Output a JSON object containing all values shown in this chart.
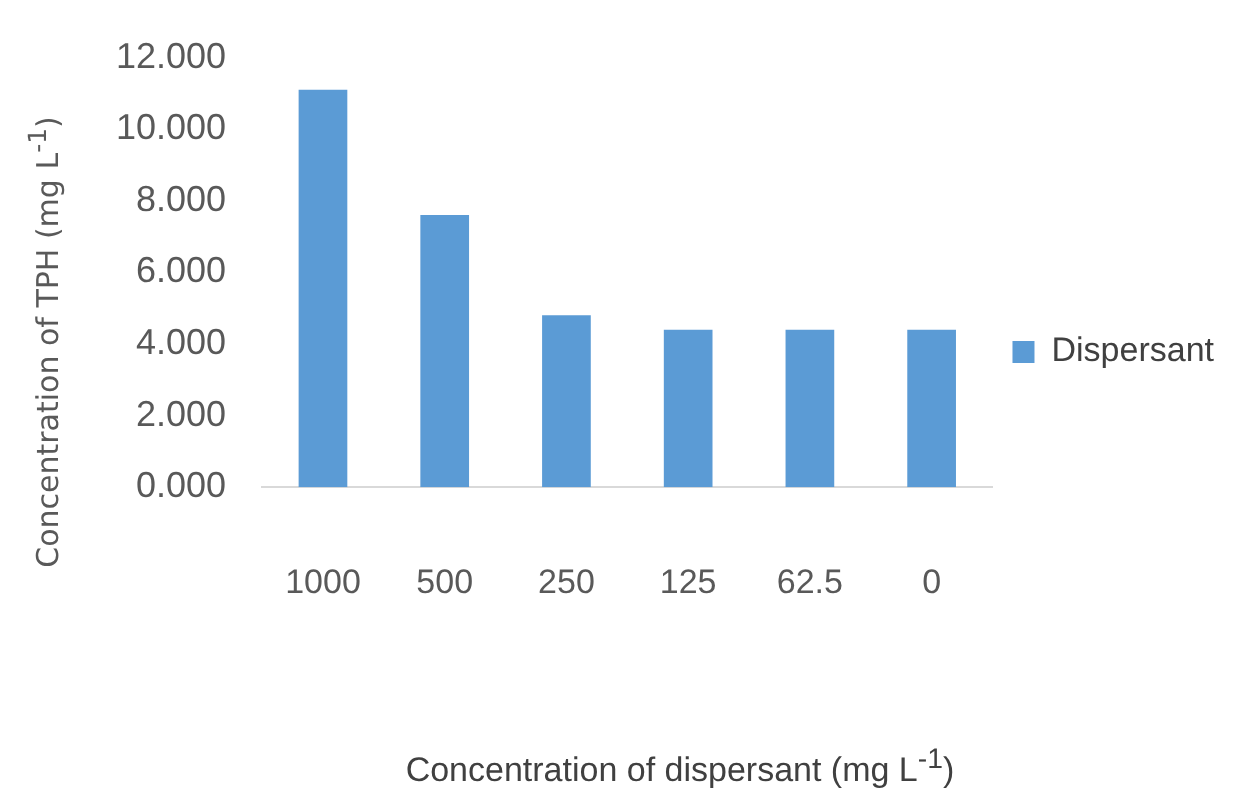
{
  "chart_data": {
    "type": "bar",
    "xlabel": "Concentration of dispersant (mg L$^{-1}$)",
    "ylabel": "Concentration of TPH (mg L$^{-1}$)",
    "categories": [
      "1000",
      "500",
      "250",
      "125",
      "62.5",
      "0"
    ],
    "series": [
      {
        "name": "Dispersant",
        "color": "#5b9bd5",
        "values": [
          11.1,
          7.6,
          4.8,
          4.4,
          4.4,
          4.4
        ]
      }
    ],
    "ylim": [
      0,
      12
    ],
    "yticks": [
      {
        "value": 0,
        "label": "0.000"
      },
      {
        "value": 2,
        "label": "2.000"
      },
      {
        "value": 4,
        "label": "4.000"
      },
      {
        "value": 6,
        "label": "6.000"
      },
      {
        "value": 8,
        "label": "8.000"
      },
      {
        "value": 10,
        "label": "10.000"
      },
      {
        "value": 12,
        "label": "12.000"
      }
    ],
    "grid": false,
    "legend": "right"
  }
}
